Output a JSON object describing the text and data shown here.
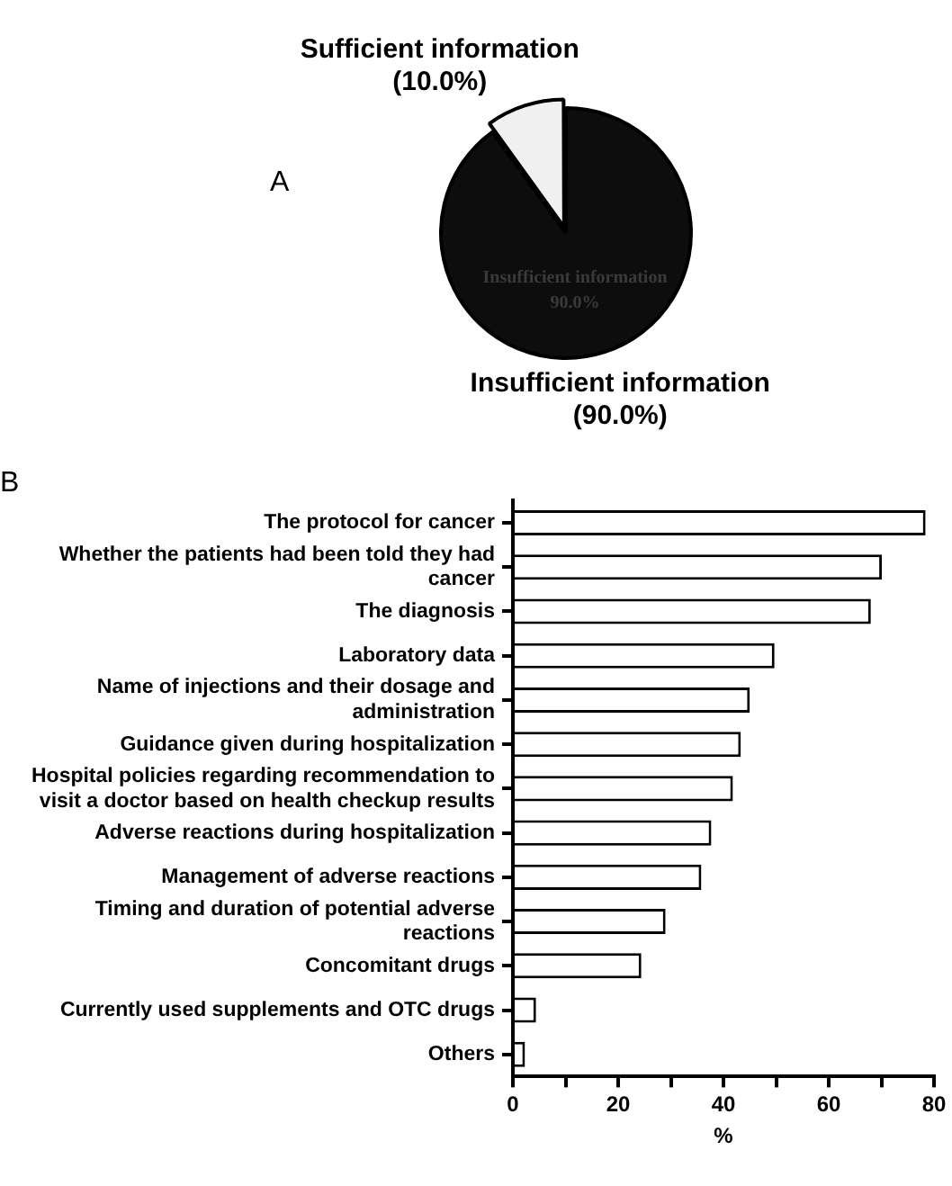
{
  "chart_data": [
    {
      "type": "pie",
      "title": "A",
      "categories": [
        "Insufficient information",
        "Sufficient information"
      ],
      "values": [
        90,
        10
      ],
      "colors": [
        "#0d0d0d",
        "#f0f0f0"
      ],
      "value_labels": [
        "(90.0%)",
        "(10.0%)"
      ],
      "annotations": [
        "Insufficient information 90.0%"
      ],
      "legend": false
    },
    {
      "type": "bar",
      "title": "B",
      "orientation": "horizontal",
      "categories": [
        "The protocol for cancer",
        "Whether the patients had been told they had cancer",
        "The diagnosis",
        "Laboratory data",
        "Name of injections and their dosage and administration",
        "Guidance given during hospitalization",
        "Hospital policies regarding recommendation to visit a doctor based on health checkup results",
        "Adverse reactions during hospitalization",
        "Management of adverse reactions",
        "Timing and duration of potential adverse reactions",
        "Concomitant drugs",
        "Currently used supplements and OTC drugs",
        "Others"
      ],
      "values": [
        78.4,
        70.1,
        68,
        49.7,
        45,
        43.3,
        41.8,
        37.7,
        35.8,
        29,
        24.4,
        4.4,
        2.3
      ],
      "color": "#ffffff",
      "xlabel": "%",
      "xlim": [
        0,
        80
      ],
      "xticks": [
        0,
        {
          "value": 10,
          "label": null
        },
        20,
        {
          "value": 30,
          "label": null
        },
        40,
        {
          "value": 50,
          "label": null
        },
        60,
        {
          "value": 70,
          "label": null
        },
        80
      ],
      "grid": false,
      "legend": false
    }
  ]
}
